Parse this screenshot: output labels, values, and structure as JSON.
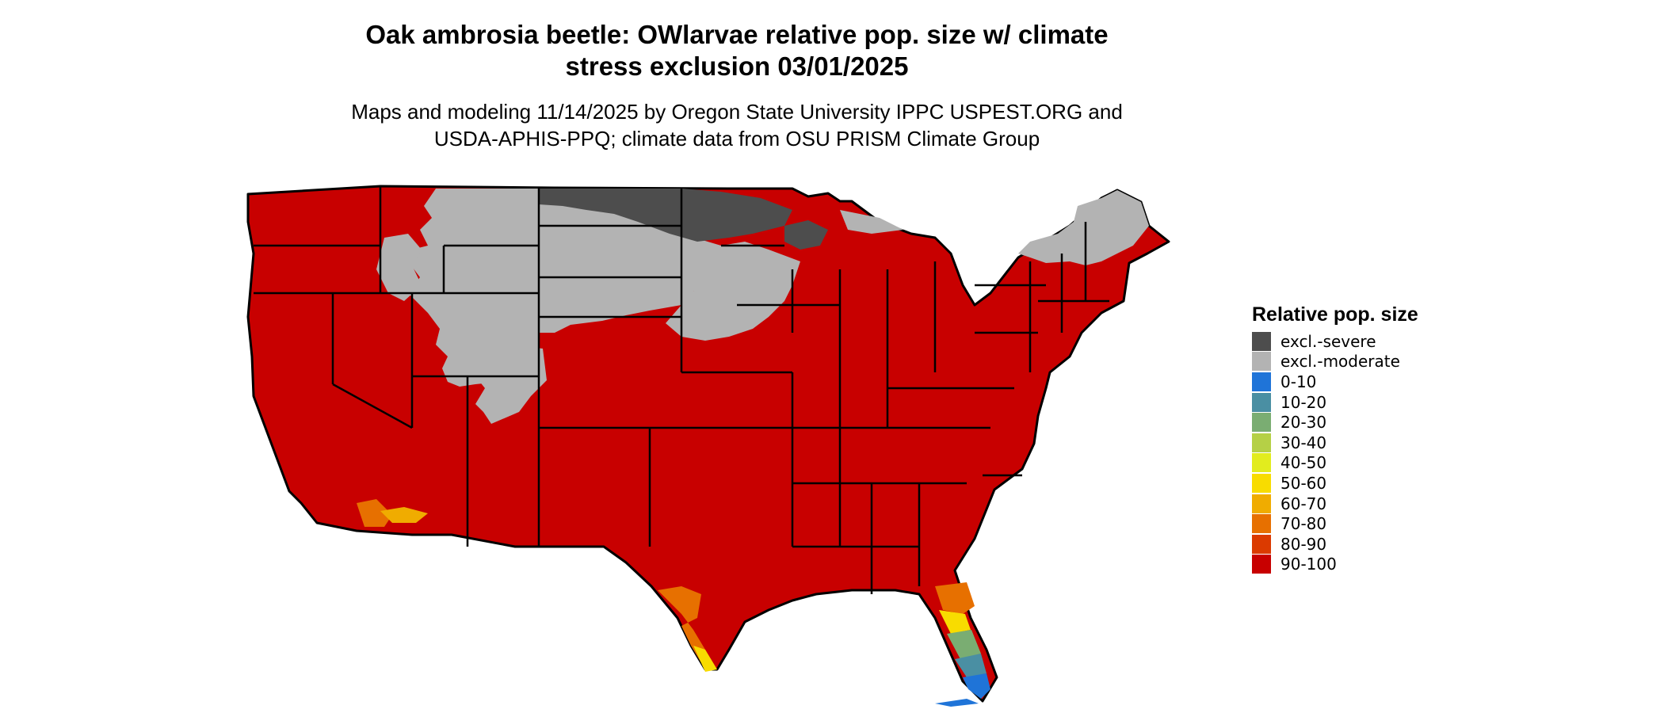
{
  "title_lines": [
    "Oak ambrosia beetle: OWlarvae relative pop. size w/ climate",
    "stress exclusion 03/01/2025"
  ],
  "subtitle_lines": [
    "Maps and modeling 11/14/2025 by Oregon State University IPPC USPEST.ORG and",
    "USDA-APHIS-PPQ; climate data from OSU PRISM Climate Group"
  ],
  "legend": {
    "title": "Relative pop. size",
    "items": [
      {
        "label": "excl.-severe",
        "color": "#4d4d4d"
      },
      {
        "label": "excl.-moderate",
        "color": "#b3b3b3"
      },
      {
        "label": "0-10",
        "color": "#1f74d8"
      },
      {
        "label": "10-20",
        "color": "#4a8fa3"
      },
      {
        "label": "20-30",
        "color": "#7aad72"
      },
      {
        "label": "30-40",
        "color": "#b5d046"
      },
      {
        "label": "40-50",
        "color": "#e2ec1e"
      },
      {
        "label": "50-60",
        "color": "#f8dc00"
      },
      {
        "label": "60-70",
        "color": "#f0ac00"
      },
      {
        "label": "70-80",
        "color": "#e77000"
      },
      {
        "label": "80-90",
        "color": "#db3a00"
      },
      {
        "label": "90-100",
        "color": "#c80000"
      }
    ]
  },
  "map": {
    "region": "Contiguous United States",
    "dominant_class": "90-100",
    "excluded_severe_areas": [
      "North Dakota",
      "Northern Minnesota",
      "Northwest Wisconsin"
    ],
    "excluded_moderate_areas": [
      "Montana",
      "Wyoming",
      "South Dakota",
      "Nebraska",
      "Iowa",
      "Southern Minnesota",
      "Wisconsin",
      "Colorado mountains",
      "Northern Maine",
      "Northern New Hampshire",
      "Northern Vermont",
      "Northern New York"
    ],
    "lower_classes_areas": [
      "South Florida",
      "South Texas",
      "Southern California",
      "Southern Arizona"
    ]
  }
}
